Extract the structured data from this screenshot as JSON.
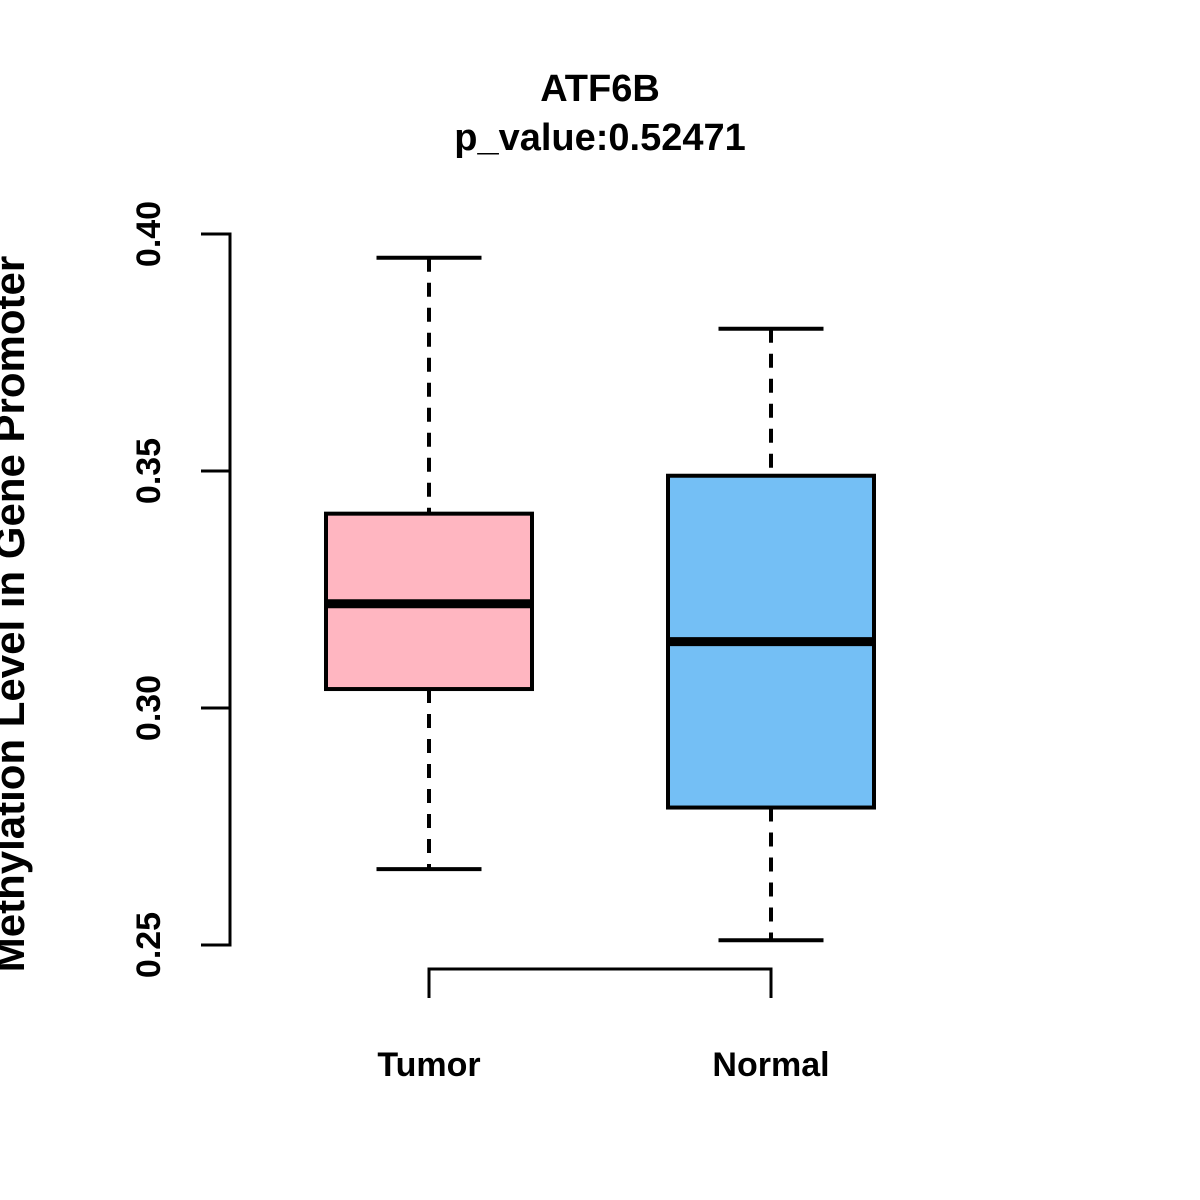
{
  "page": {
    "background": "#FFFFFF"
  },
  "chart_data": {
    "type": "boxplot",
    "title": "ATF6B",
    "subtitle": "p_value:0.52471",
    "gene": "ATF6B",
    "p_value": "0.52471",
    "ylabel": "Methylation Level in Gene Promoter",
    "xlabel": "",
    "ylim": [
      0.25,
      0.4
    ],
    "yticks": [
      0.4,
      0.35,
      0.3,
      0.25
    ],
    "yticklabels": [
      "0.40",
      "0.35",
      "0.30",
      "0.25"
    ],
    "grid": false,
    "legend_position": "none",
    "line_color": "#000000",
    "categories": [
      "Tumor",
      "Normal"
    ],
    "series": [
      {
        "name": "Tumor",
        "color": "#FFB6C1",
        "upper_whisker": 0.395,
        "q3": 0.341,
        "median": 0.322,
        "q1": 0.304,
        "lower_whisker": 0.266
      },
      {
        "name": "Normal",
        "color": "#74BFF5",
        "upper_whisker": 0.38,
        "q3": 0.349,
        "median": 0.314,
        "q1": 0.279,
        "lower_whisker": 0.251
      }
    ]
  }
}
